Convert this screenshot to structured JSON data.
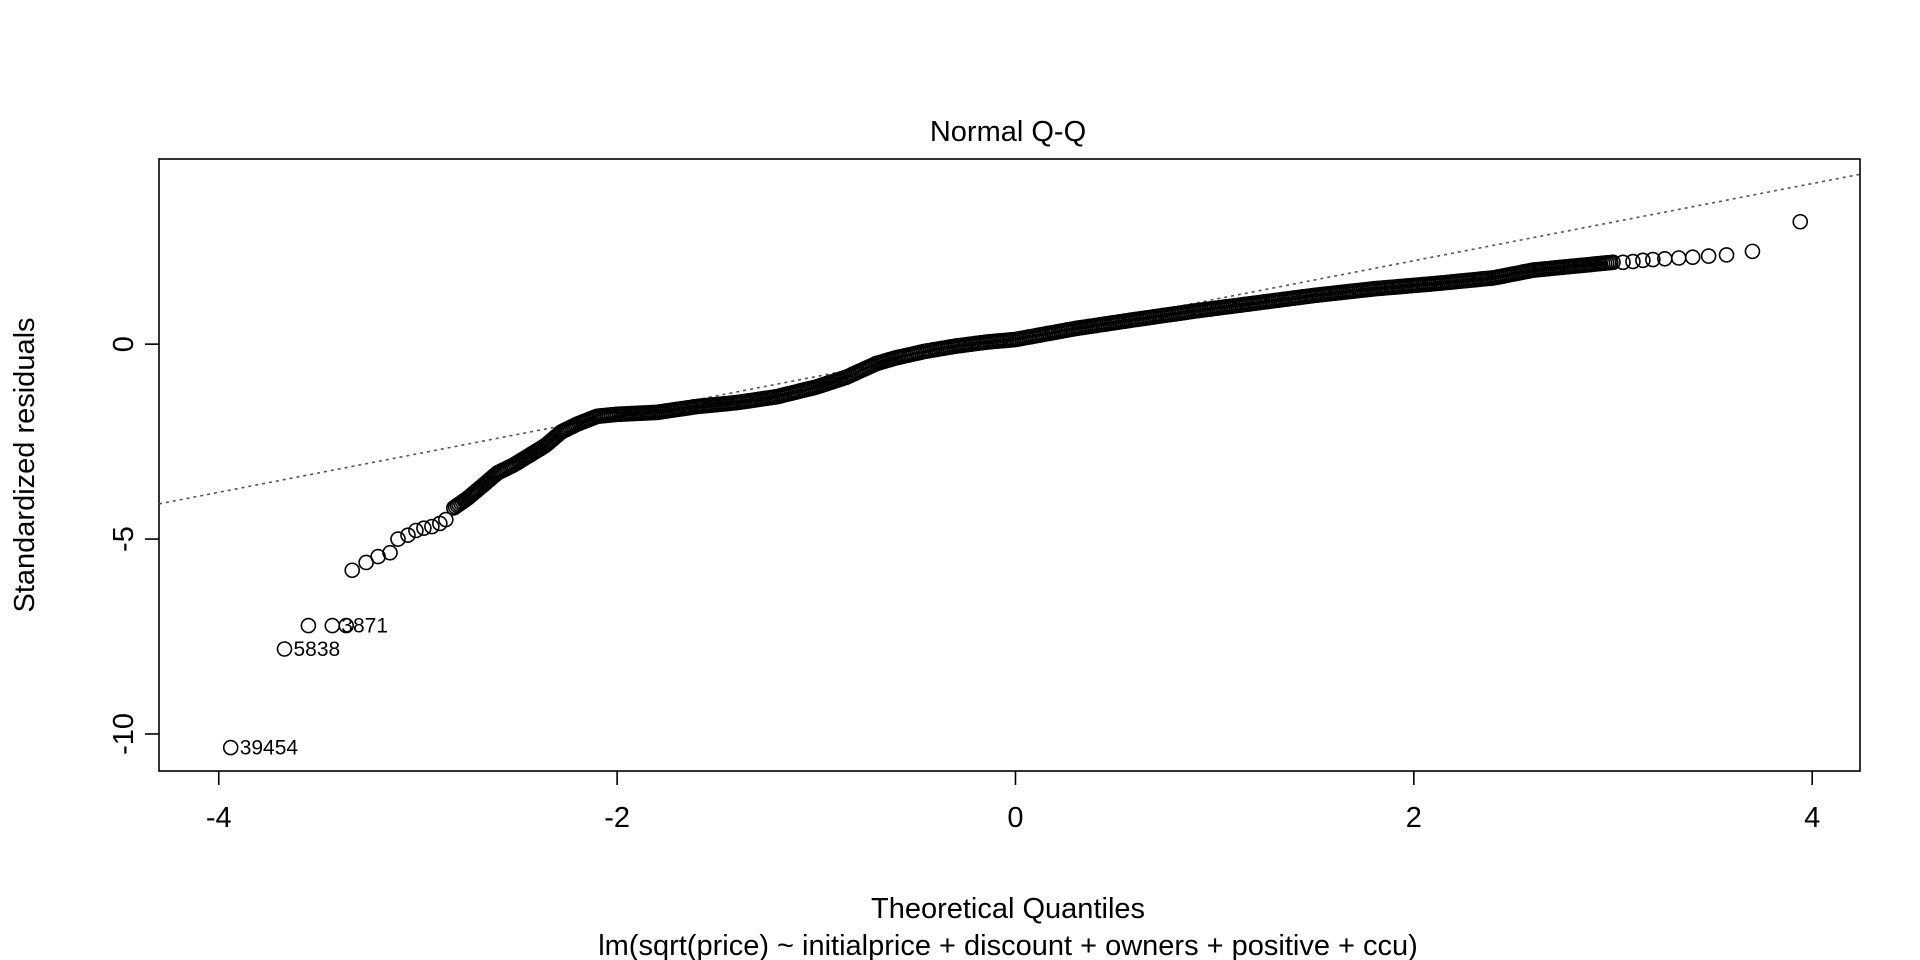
{
  "chart_data": {
    "type": "scatter",
    "title": "Normal Q-Q",
    "xlabel": "Theoretical Quantiles",
    "ylabel": "Standardized residuals",
    "subtitle": "lm(sqrt(price) ~ initialprice + discount + owners + positive + ccu)",
    "xlim": [
      -4.3,
      4.24
    ],
    "ylim": [
      -10.95,
      4.75
    ],
    "xticks": [
      -4,
      -2,
      0,
      2,
      4
    ],
    "yticks": [
      -10,
      -5,
      0
    ],
    "grid": false,
    "legend": "none",
    "reference_line": {
      "intercept": 0.16,
      "slope": 0.99
    },
    "curve": {
      "x": [
        -2.82,
        -2.75,
        -2.68,
        -2.6,
        -2.52,
        -2.44,
        -2.36,
        -2.28,
        -2.2,
        -2.1,
        -2.0,
        -1.8,
        -1.6,
        -1.4,
        -1.2,
        -1.0,
        -0.85,
        -0.7,
        -0.6,
        -0.45,
        -0.3,
        -0.15,
        0.0,
        0.3,
        0.6,
        0.9,
        1.2,
        1.5,
        1.8,
        2.1,
        2.4,
        2.6,
        2.8,
        3.0
      ],
      "y": [
        -4.2,
        -3.95,
        -3.65,
        -3.3,
        -3.1,
        -2.85,
        -2.6,
        -2.25,
        -2.05,
        -1.85,
        -1.8,
        -1.75,
        -1.6,
        -1.5,
        -1.35,
        -1.1,
        -0.85,
        -0.5,
        -0.35,
        -0.18,
        -0.05,
        0.05,
        0.12,
        0.4,
        0.63,
        0.85,
        1.05,
        1.25,
        1.42,
        1.55,
        1.7,
        1.9,
        2.0,
        2.1
      ]
    },
    "tail_points": [
      {
        "x": -3.94,
        "y": -10.35,
        "label": "39454"
      },
      {
        "x": -3.67,
        "y": -7.82,
        "label": "5838"
      },
      {
        "x": -3.55,
        "y": -7.22,
        "label": ""
      },
      {
        "x": -3.43,
        "y": -7.22,
        "label": "3871"
      },
      {
        "x": -3.36,
        "y": -7.22,
        "label": ""
      },
      {
        "x": -3.33,
        "y": -5.8,
        "label": ""
      },
      {
        "x": -3.26,
        "y": -5.6,
        "label": ""
      },
      {
        "x": -3.2,
        "y": -5.45,
        "label": ""
      },
      {
        "x": -3.14,
        "y": -5.35,
        "label": ""
      },
      {
        "x": -3.1,
        "y": -5.0,
        "label": ""
      },
      {
        "x": -3.05,
        "y": -4.9,
        "label": ""
      },
      {
        "x": -3.01,
        "y": -4.78,
        "label": ""
      },
      {
        "x": -2.97,
        "y": -4.72,
        "label": ""
      },
      {
        "x": -2.93,
        "y": -4.68,
        "label": ""
      },
      {
        "x": -2.89,
        "y": -4.6,
        "label": ""
      },
      {
        "x": -2.86,
        "y": -4.5,
        "label": ""
      },
      {
        "x": 3.05,
        "y": 2.1,
        "label": ""
      },
      {
        "x": 3.1,
        "y": 2.12,
        "label": ""
      },
      {
        "x": 3.15,
        "y": 2.15,
        "label": ""
      },
      {
        "x": 3.2,
        "y": 2.17,
        "label": ""
      },
      {
        "x": 3.26,
        "y": 2.19,
        "label": ""
      },
      {
        "x": 3.33,
        "y": 2.21,
        "label": ""
      },
      {
        "x": 3.4,
        "y": 2.23,
        "label": ""
      },
      {
        "x": 3.48,
        "y": 2.26,
        "label": ""
      },
      {
        "x": 3.57,
        "y": 2.29,
        "label": ""
      },
      {
        "x": 3.7,
        "y": 2.38,
        "label": ""
      },
      {
        "x": 3.94,
        "y": 3.14,
        "label": ""
      }
    ]
  }
}
